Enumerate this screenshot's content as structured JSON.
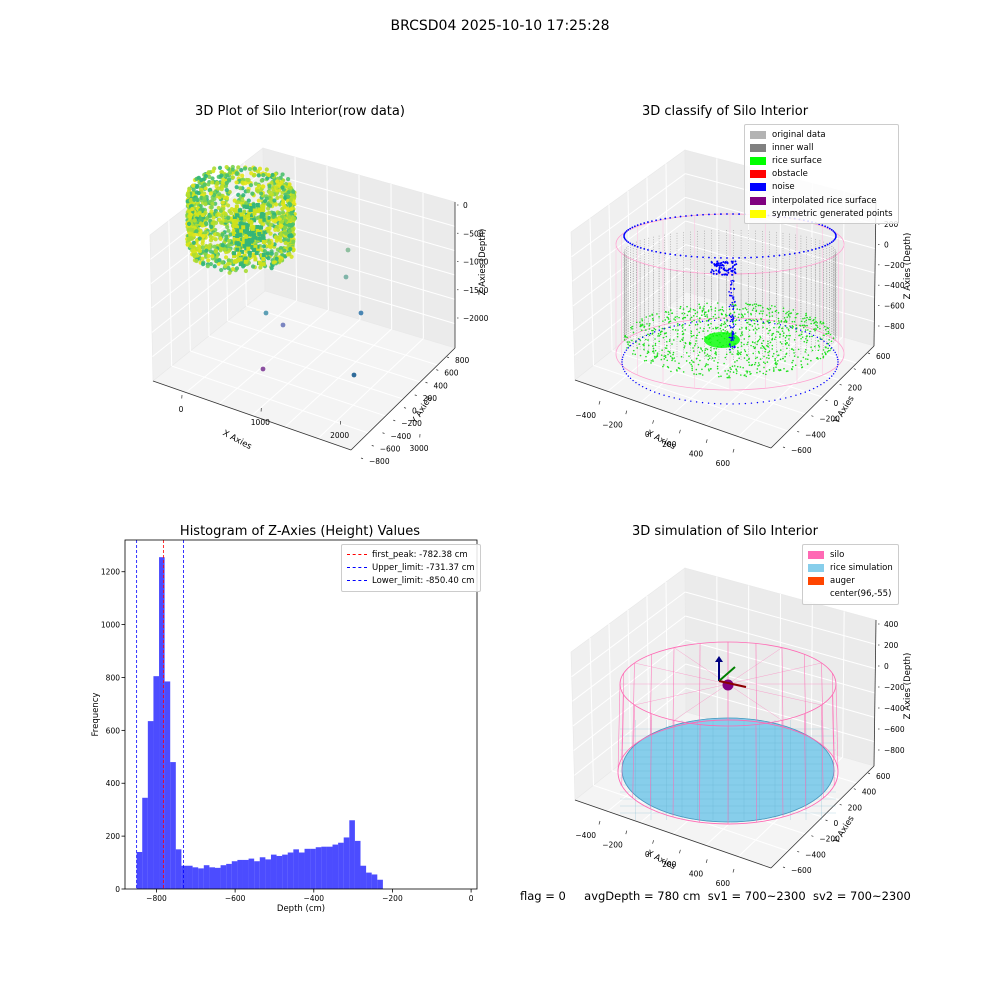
{
  "page_title": "BRCSD04 2025-10-10 17:25:28",
  "footer": {
    "flag": "flag = 0",
    "avg_depth": "avgDepth = 780 cm",
    "sv1": "sv1 = 700~2300",
    "sv2": "sv2 = 700~2300"
  },
  "chart_data": [
    {
      "type": "scatter",
      "title": "3D Plot of Silo Interior(row data)",
      "xlabel": "X Axies",
      "ylabel": "Y Axies",
      "zlabel": "Z Axies (Depth)",
      "x_ticks": [
        "0",
        "1000",
        "2000",
        "3000"
      ],
      "y_ticks": [
        "800",
        "600",
        "400",
        "200",
        "0",
        "−200",
        "−400",
        "−600",
        "−800"
      ],
      "z_ticks": [
        "0",
        "−500",
        "−1000",
        "−1500",
        "−2000"
      ]
    },
    {
      "type": "scatter",
      "title": "3D classify of Silo Interior",
      "xlabel": "X Axies",
      "ylabel": "Y Axies",
      "zlabel": "Z Axies (Depth)",
      "x_ticks": [
        "−400",
        "−200",
        "0",
        "200",
        "400",
        "600"
      ],
      "y_ticks": [
        "600",
        "400",
        "200",
        "0",
        "−200",
        "−400",
        "−600"
      ],
      "z_ticks": [
        "200",
        "0",
        "−200",
        "−400",
        "−600",
        "−800"
      ],
      "legend": [
        {
          "label": "original data",
          "color": "#b3b3b3"
        },
        {
          "label": "inner wall",
          "color": "#808080"
        },
        {
          "label": "rice surface",
          "color": "#00ff00"
        },
        {
          "label": "obstacle",
          "color": "#ff0000"
        },
        {
          "label": "noise",
          "color": "#0000ff"
        },
        {
          "label": "interpolated rice surface",
          "color": "#800080"
        },
        {
          "label": "symmetric generated points",
          "color": "#ffff00"
        }
      ]
    },
    {
      "type": "bar",
      "title": "Histogram of Z-Axies (Height) Values",
      "xlabel": "Depth (cm)",
      "ylabel": "Frequency",
      "xlim": [
        -880,
        15
      ],
      "ylim": [
        0,
        1320
      ],
      "x_ticks": [
        -800,
        -600,
        -400,
        -200,
        0
      ],
      "y_ticks": [
        0,
        200,
        400,
        600,
        800,
        1000,
        1200
      ],
      "bin_start": -850.4,
      "bin_width": 14.23,
      "values": [
        140,
        345,
        635,
        805,
        1255,
        785,
        480,
        150,
        88,
        88,
        82,
        78,
        90,
        82,
        80,
        90,
        95,
        105,
        110,
        110,
        115,
        105,
        120,
        112,
        130,
        125,
        130,
        138,
        150,
        138,
        152,
        152,
        158,
        160,
        160,
        168,
        175,
        195,
        260,
        182,
        88,
        62,
        55,
        35
      ],
      "bar_color": "#0000ff",
      "legend": [
        {
          "label": "first_peak: -782.38 cm",
          "value": -782.38,
          "color": "#ff0000"
        },
        {
          "label": "Upper_limit: -731.37 cm",
          "value": -731.37,
          "color": "#0000ff"
        },
        {
          "label": "Lower_limit: -850.40 cm",
          "value": -850.4,
          "color": "#0000ff"
        }
      ]
    },
    {
      "type": "scatter",
      "title": "3D simulation of Silo Interior",
      "xlabel": "X Axies",
      "ylabel": "Y Axies",
      "zlabel": "Z Axies (Depth)",
      "x_ticks": [
        "−400",
        "−200",
        "0",
        "200",
        "400",
        "600"
      ],
      "y_ticks": [
        "600",
        "400",
        "200",
        "0",
        "−200",
        "−400",
        "−600"
      ],
      "z_ticks": [
        "400",
        "200",
        "0",
        "−200",
        "−400",
        "−600",
        "−800"
      ],
      "legend": [
        {
          "label": "silo",
          "color": "#ff69b4"
        },
        {
          "label": "rice simulation",
          "color": "#87ceeb"
        },
        {
          "label": "auger",
          "color": "#ff4500"
        },
        {
          "label": "center(96,-55)",
          "color": "#ffffff"
        }
      ]
    }
  ]
}
